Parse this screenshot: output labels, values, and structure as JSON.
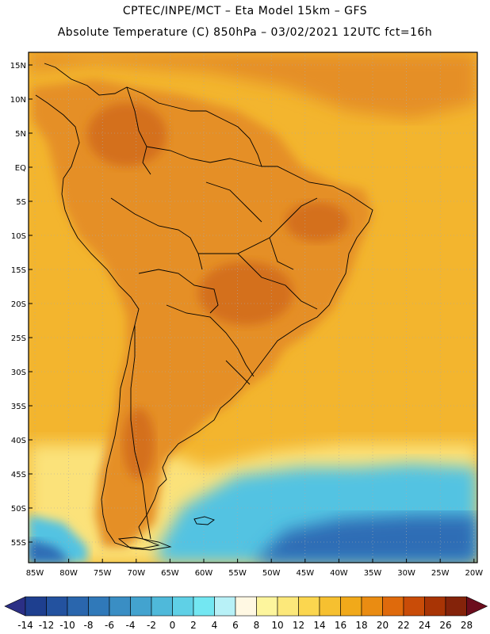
{
  "header": {
    "line1": "CPTEC/INPE/MCT –  Eta Model 15km – GFS",
    "line2": "Absolute Temperature (C) 850hPa – 03/02/2021 12UTC fct=16h"
  },
  "axes": {
    "lat_labels": [
      "15N",
      "10N",
      "5N",
      "EQ",
      "5S",
      "10S",
      "15S",
      "20S",
      "25S",
      "30S",
      "35S",
      "40S",
      "45S",
      "50S",
      "55S"
    ],
    "lon_labels": [
      "85W",
      "80W",
      "75W",
      "70W",
      "65W",
      "60W",
      "55W",
      "50W",
      "45W",
      "40W",
      "35W",
      "30W",
      "25W",
      "20W"
    ]
  },
  "colorbar": {
    "labels": [
      "-14",
      "-12",
      "-10",
      "-8",
      "-6",
      "-4",
      "-2",
      "0",
      "2",
      "4",
      "6",
      "8",
      "10",
      "12",
      "14",
      "16",
      "18",
      "20",
      "22",
      "24",
      "26",
      "28"
    ],
    "colors": [
      "#1e3f8f",
      "#23529f",
      "#2a66ad",
      "#3079b9",
      "#3a8ec4",
      "#43a3cf",
      "#4fb9da",
      "#5fd0e6",
      "#73e7f2",
      "#b8f1f7",
      "#fff8e3",
      "#fdf59d",
      "#fce87a",
      "#fbd64f",
      "#f6c030",
      "#f1a91a",
      "#ea8c12",
      "#df6a0c",
      "#c94c08",
      "#a83405",
      "#84230a"
    ],
    "under_color": "#2b2f85",
    "over_color": "#6c0d1d"
  },
  "map": {
    "ocean_color": "#f3b52e",
    "land_color": "#e58f25",
    "hot_color": "#d4701b",
    "cool_color": "#fbe27a",
    "cold_color": "#53c3e2",
    "deep_cold_color": "#2e6db5",
    "border_color": "#000000",
    "grid_color": "#aaaaaa"
  }
}
